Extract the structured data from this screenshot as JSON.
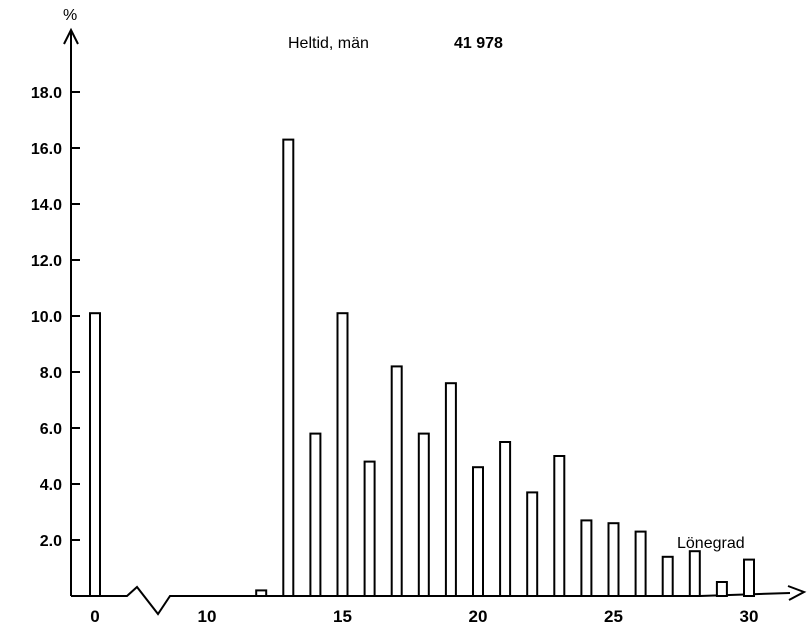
{
  "chart_data": {
    "type": "bar",
    "title": "Heltid, män",
    "total_count": "41 978",
    "ylabel": "%",
    "xlabel": "Lönegrad",
    "ylim": [
      0,
      20
    ],
    "yticks": [
      "2.0",
      "4.0",
      "6.0",
      "8.0",
      "10.0",
      "12.0",
      "14.0",
      "16.0",
      "18.0"
    ],
    "xticks": [
      "0",
      "10",
      "15",
      "20",
      "25",
      "30"
    ],
    "axis_break": true,
    "grid": false,
    "x": [
      0,
      12,
      13,
      14,
      15,
      16,
      17,
      18,
      19,
      20,
      21,
      22,
      23,
      24,
      25,
      26,
      27,
      28,
      29,
      30
    ],
    "values": [
      10.1,
      0.2,
      16.3,
      5.8,
      10.1,
      4.8,
      8.2,
      5.8,
      7.6,
      4.6,
      5.5,
      3.7,
      5.0,
      2.7,
      2.6,
      2.3,
      1.4,
      1.6,
      0.5,
      1.3
    ]
  }
}
